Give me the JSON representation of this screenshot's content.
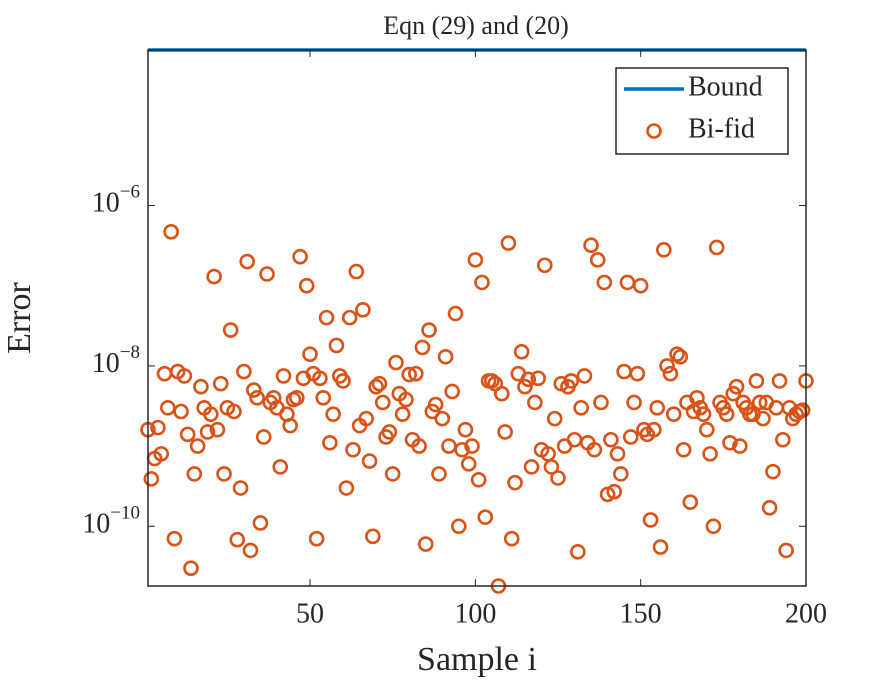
{
  "chart_data": {
    "type": "scatter",
    "title": "Eqn (29) and (20)",
    "xlabel": "Sample i",
    "ylabel": "Error",
    "xlim": [
      1,
      200
    ],
    "xticks": [
      50,
      100,
      150,
      200
    ],
    "ylim": [
      1.8e-11,
      8.7e-05
    ],
    "yscale": "log",
    "yticks": [
      {
        "value": 1e-10,
        "label": "10^{−10}"
      },
      {
        "value": 1e-08,
        "label": "10^{−8}"
      },
      {
        "value": 1e-06,
        "label": "10^{−6}"
      }
    ],
    "legend": "upper right",
    "series": [
      {
        "name": "Bound",
        "color": "#0072bd",
        "style": "line",
        "x": [
          1,
          200
        ],
        "values": [
          8.7e-05,
          8.7e-05
        ]
      },
      {
        "name": "Bi-fid",
        "color": "#d95319",
        "style": "circle",
        "x": [
          1,
          2,
          3,
          4,
          5,
          6,
          7,
          8,
          9,
          10,
          11,
          12,
          13,
          14,
          15,
          16,
          17,
          18,
          19,
          20,
          21,
          22,
          23,
          24,
          25,
          26,
          27,
          28,
          29,
          30,
          31,
          32,
          33,
          34,
          35,
          36,
          37,
          38,
          39,
          40,
          41,
          42,
          43,
          44,
          45,
          46,
          47,
          48,
          49,
          50,
          51,
          52,
          53,
          54,
          55,
          56,
          57,
          58,
          59,
          60,
          61,
          62,
          63,
          64,
          65,
          66,
          67,
          68,
          69,
          70,
          71,
          72,
          73,
          74,
          75,
          76,
          77,
          78,
          79,
          80,
          81,
          82,
          83,
          84,
          85,
          86,
          87,
          88,
          89,
          90,
          91,
          92,
          93,
          94,
          95,
          96,
          97,
          98,
          99,
          100,
          101,
          102,
          103,
          104,
          105,
          106,
          107,
          108,
          109,
          110,
          111,
          112,
          113,
          114,
          115,
          116,
          117,
          118,
          119,
          120,
          121,
          122,
          123,
          124,
          125,
          126,
          127,
          128,
          129,
          130,
          131,
          132,
          133,
          134,
          135,
          136,
          137,
          138,
          139,
          140,
          141,
          142,
          143,
          144,
          145,
          146,
          147,
          148,
          149,
          150,
          151,
          152,
          153,
          154,
          155,
          156,
          157,
          158,
          159,
          160,
          161,
          162,
          163,
          164,
          165,
          166,
          167,
          168,
          169,
          170,
          171,
          172,
          173,
          174,
          175,
          176,
          177,
          178,
          179,
          180,
          181,
          182,
          183,
          184,
          185,
          186,
          187,
          188,
          189,
          190,
          191,
          192,
          193,
          194,
          195,
          196,
          197,
          198,
          199,
          200
        ],
        "values": [
          1.6e-09,
          3.9e-10,
          7e-10,
          1.7e-09,
          8e-10,
          8e-09,
          3e-09,
          4.7e-07,
          7e-11,
          8.5e-09,
          2.7e-09,
          7.5e-09,
          1.4e-09,
          3e-11,
          4.5e-10,
          1e-09,
          5.5e-09,
          3e-09,
          1.5e-09,
          2.5e-09,
          1.3e-07,
          1.6e-09,
          6e-09,
          4.5e-10,
          3e-09,
          2.8e-08,
          2.7e-09,
          6.8e-11,
          3e-10,
          8.5e-09,
          2e-07,
          5e-11,
          5e-09,
          4e-09,
          1.1e-10,
          1.3e-09,
          1.4e-07,
          3.5e-09,
          4e-09,
          3e-09,
          5.5e-10,
          7.5e-09,
          2.5e-09,
          1.8e-09,
          3.8e-09,
          4e-09,
          2.3e-07,
          7e-09,
          1e-07,
          1.4e-08,
          8e-09,
          7e-11,
          7e-09,
          4e-09,
          4e-08,
          1.1e-09,
          2.5e-09,
          1.8e-08,
          7.5e-09,
          6.5e-09,
          3e-10,
          4e-08,
          9e-10,
          1.5e-07,
          1.8e-09,
          5e-08,
          2.2e-09,
          6.5e-10,
          7.5e-11,
          5.5e-09,
          6e-09,
          3.5e-09,
          1.3e-09,
          1.5e-09,
          4.5e-10,
          1.1e-08,
          4.5e-09,
          2.5e-09,
          3.8e-09,
          7.8e-09,
          1.2e-09,
          8e-09,
          1e-09,
          1.7e-08,
          6e-11,
          2.8e-08,
          2.7e-09,
          3.3e-09,
          4.5e-10,
          2.2e-09,
          1.3e-08,
          1e-09,
          4.8e-09,
          4.5e-08,
          1e-10,
          9e-10,
          1.6e-09,
          6e-10,
          1e-09,
          2.1e-07,
          3.8e-10,
          1.1e-07,
          1.3e-10,
          6.5e-09,
          6.5e-09,
          6e-09,
          1.8e-11,
          4.5e-09,
          1.5e-09,
          3.4e-07,
          7e-11,
          3.5e-10,
          8e-09,
          1.5e-08,
          5.5e-09,
          6.8e-09,
          5.5e-10,
          3.5e-09,
          7e-09,
          9e-10,
          1.8e-07,
          8e-10,
          5.5e-10,
          2.2e-09,
          4e-10,
          6e-09,
          1e-09,
          5.5e-09,
          6.5e-09,
          1.2e-09,
          4.8e-11,
          3e-09,
          7.5e-09,
          1.1e-09,
          3.2e-07,
          9e-10,
          2.1e-07,
          3.5e-09,
          1.1e-07,
          2.5e-10,
          1.2e-09,
          2.7e-10,
          8e-10,
          4.5e-10,
          8.5e-09,
          1.1e-07,
          1.3e-09,
          3.5e-09,
          8e-09,
          1e-07,
          1.6e-09,
          1.4e-09,
          1.2e-10,
          1.6e-09,
          3e-09,
          5.5e-11,
          2.8e-07,
          1e-08,
          8e-09,
          2.5e-09,
          1.4e-08,
          1.3e-08,
          9e-10,
          3.5e-09,
          2e-10,
          2.7e-09,
          4e-09,
          3e-09,
          2.5e-09,
          1.6e-09,
          8e-10,
          1e-10,
          3e-07,
          3.5e-09,
          3e-09,
          2.5e-09,
          1.1e-09,
          4.5e-09,
          5.5e-09,
          1e-09,
          3.5e-09,
          3e-09,
          2.5e-09,
          2.5e-09,
          6.5e-09,
          3.5e-09,
          2.2e-09,
          3.5e-09,
          1.7e-10,
          4.8e-10,
          3e-09,
          6.5e-09,
          1.2e-09,
          5e-11,
          3e-09,
          2.2e-09,
          2.5e-09,
          2.7e-09,
          2.8e-09,
          6.5e-09
        ]
      }
    ]
  }
}
